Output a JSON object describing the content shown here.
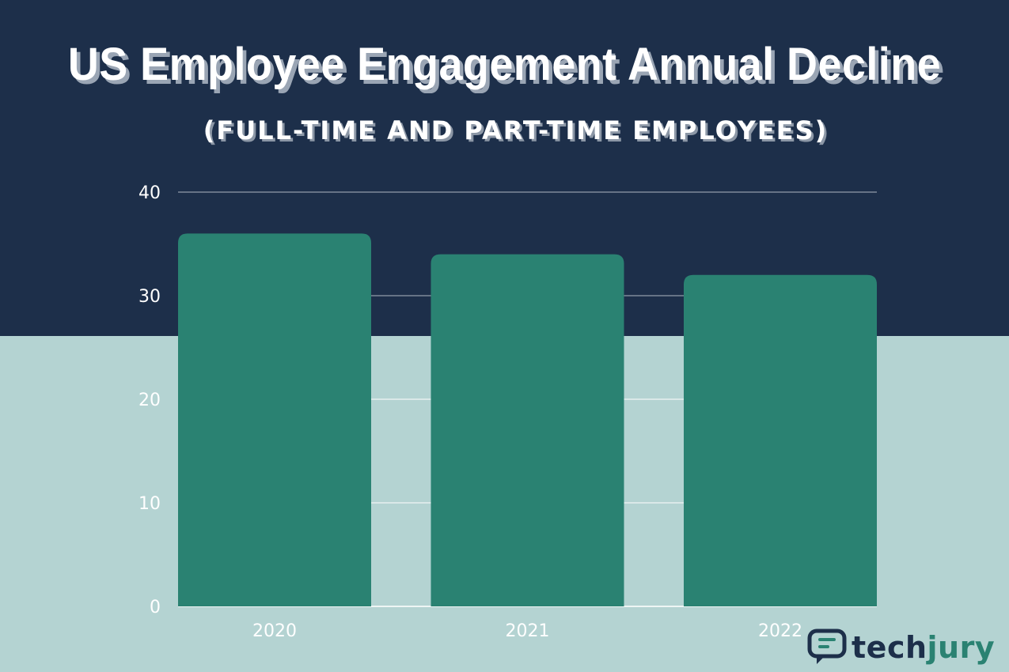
{
  "header": {
    "title": "US Employee Engagement Annual Decline",
    "subtitle": "(FULL-TIME AND PART-TIME EMPLOYEES)"
  },
  "chart_data": {
    "type": "bar",
    "title": "US Employee Engagement Annual Decline",
    "subtitle": "(FULL-TIME AND PART-TIME EMPLOYEES)",
    "categories": [
      "2020",
      "2021",
      "2022"
    ],
    "values": [
      36,
      34,
      32
    ],
    "ylim": [
      0,
      40
    ],
    "yticks": [
      0,
      10,
      20,
      30,
      40
    ],
    "xlabel": "",
    "ylabel": "",
    "grid": true,
    "colors": {
      "bar": "#2a8272",
      "top_background": "#1d2f4a",
      "bottom_background": "#b4d3d2",
      "tick_label": "#ffffff"
    }
  },
  "logo": {
    "part1": "tech",
    "part2": "jury",
    "icon": "chat-bubble-icon"
  }
}
